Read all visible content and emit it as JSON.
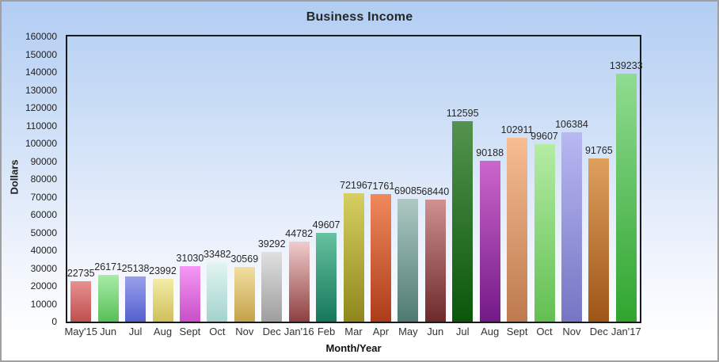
{
  "title": "Business Income",
  "chart_data": {
    "type": "bar",
    "title": "Business Income",
    "xlabel": "Month/Year",
    "ylabel": "Dollars",
    "ylim": [
      0,
      160000
    ],
    "ytick_step": 10000,
    "grid": false,
    "legend": "none",
    "categories": [
      "May'15",
      "Jun",
      "Jul",
      "Aug",
      "Sept",
      "Oct",
      "Nov",
      "Dec",
      "Jan'16",
      "Feb",
      "Mar",
      "Apr",
      "May",
      "Jun",
      "Jul",
      "Aug",
      "Sept",
      "Oct",
      "Nov",
      "Dec",
      "Jan'17"
    ],
    "values": [
      22735,
      26171,
      25138,
      23992,
      31030,
      33482,
      30569,
      39292,
      44782,
      49607,
      72196,
      71761,
      69085,
      68440,
      112595,
      90188,
      102911,
      99607,
      106384,
      91765,
      139233
    ],
    "bar_colors": [
      [
        "#e89090",
        "#bf4f4f"
      ],
      [
        "#a8eca8",
        "#58bf58"
      ],
      [
        "#98a0ec",
        "#5460cf"
      ],
      [
        "#f2eca6",
        "#cfc05a"
      ],
      [
        "#f598f5",
        "#c94fc9"
      ],
      [
        "#e2f5f2",
        "#a4d2cd"
      ],
      [
        "#f2dfa0",
        "#c4a24b"
      ],
      [
        "#e0e0e0",
        "#9e9e9e"
      ],
      [
        "#f0cccc",
        "#8f4040"
      ],
      [
        "#66c2a0",
        "#16775a"
      ],
      [
        "#d6cf62",
        "#8f871c"
      ],
      [
        "#ef8a5c",
        "#ae3c1a"
      ],
      [
        "#aec9c4",
        "#4e7a72"
      ],
      [
        "#cf9090",
        "#6e2a2a"
      ],
      [
        "#54934f",
        "#0a570a"
      ],
      [
        "#cc66cc",
        "#731a88"
      ],
      [
        "#f7bd93",
        "#bd7a4e"
      ],
      [
        "#b5eca4",
        "#62bf52"
      ],
      [
        "#b8b8f2",
        "#7575c4"
      ],
      [
        "#dfa05e",
        "#9e5516"
      ],
      [
        "#90dc90",
        "#2fa52f"
      ]
    ]
  },
  "colors": {
    "frame_border": "#a0a0a0",
    "plot_border": "#1a1a1a",
    "background_top": "#b2cdf3",
    "background_bottom": "#ffffff",
    "text": "#262626"
  }
}
